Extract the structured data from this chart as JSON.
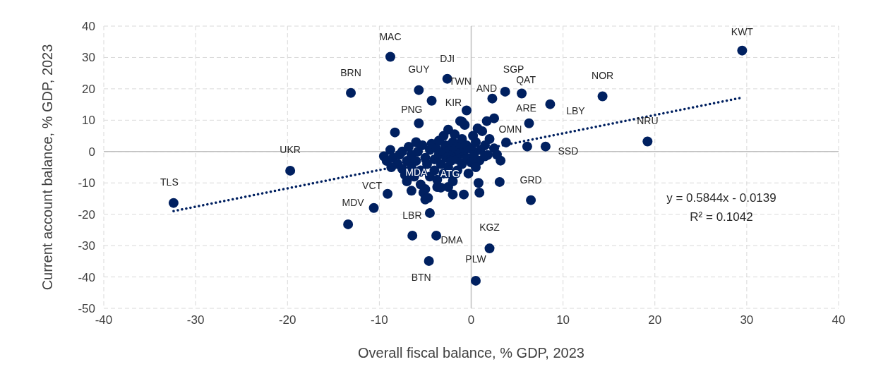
{
  "chart_data": {
    "type": "scatter",
    "xlabel": "Overall fiscal balance, % GDP, 2023",
    "ylabel": "Current account balance, % GDP, 2023",
    "xlim": [
      -40,
      40
    ],
    "xticks": [
      -40,
      -30,
      -20,
      -10,
      0,
      10,
      20,
      30,
      40
    ],
    "ylim": [
      -50,
      40
    ],
    "yticks": [
      -50,
      -40,
      -30,
      -20,
      -10,
      0,
      10,
      20,
      30,
      40
    ],
    "grid": true,
    "marker": "circle",
    "series": [
      {
        "color": "#002060",
        "x": [
          29.5,
          -8.8,
          -2.6,
          -13.1,
          -5.7,
          -0.5,
          -4.3,
          3.7,
          5.5,
          2.3,
          14.3,
          8.6,
          6.3,
          -5.7,
          3.8,
          19.2,
          8.1,
          6.1,
          -19.7,
          -32.4,
          -9.1,
          -13.4,
          -10.6,
          -2.3,
          6.5,
          -4.5,
          -3.8,
          -6.4,
          2.0,
          -4.6,
          0.5,
          -8.3,
          2.5,
          1.7,
          0.7,
          -1.2,
          3.2,
          3.1,
          0.9,
          1.8,
          -5.2,
          -5.0,
          -2.0,
          -0.8,
          0.9,
          -3.7,
          -2.5,
          -9.5,
          -9.2,
          -8.8,
          -8.5,
          -8.0,
          -7.8,
          -7.5,
          -7.2,
          -7.0,
          -7.0,
          -6.8,
          -6.5,
          -6.5,
          -6.2,
          -6.0,
          -6.0,
          -5.8,
          -5.5,
          -5.5,
          -5.3,
          -5.0,
          -5.0,
          -4.8,
          -4.5,
          -4.5,
          -4.3,
          -4.0,
          -4.0,
          -3.8,
          -3.7,
          -3.5,
          -3.5,
          -3.3,
          -3.0,
          -3.0,
          -3.0,
          -2.8,
          -2.7,
          -2.5,
          -2.5,
          -2.3,
          -2.2,
          -2.0,
          -2.0,
          -2.0,
          -1.8,
          -1.7,
          -1.5,
          -1.5,
          -1.3,
          -1.2,
          -1.0,
          -1.0,
          -0.8,
          -0.7,
          -0.5,
          -0.5,
          -0.3,
          0.0,
          0.0,
          0.2,
          0.3,
          0.5,
          0.5,
          0.8,
          1.0,
          1.2,
          1.5,
          1.5,
          2.0,
          2.5,
          2.8,
          -1.0,
          -7.5,
          -8.7,
          -6.5,
          -4.7,
          -3.3
        ],
        "values": [
          32.2,
          30.2,
          23.2,
          18.7,
          19.6,
          13.1,
          16.2,
          19.1,
          18.5,
          16.9,
          17.6,
          15.1,
          9.0,
          9.0,
          2.9,
          3.2,
          1.6,
          1.6,
          -6.1,
          -16.4,
          -13.5,
          -23.2,
          -18.0,
          -7.0,
          -15.5,
          -19.6,
          -26.8,
          -26.8,
          -30.9,
          -34.9,
          -41.2,
          6.1,
          10.6,
          9.7,
          7.4,
          9.7,
          -2.9,
          -9.7,
          -2.9,
          -1.1,
          -13.1,
          -15.3,
          -13.7,
          -13.7,
          -13.1,
          -11.3,
          -11.3,
          -1.5,
          -3.0,
          0.5,
          -2.0,
          -4.0,
          -1.0,
          0.0,
          -7.5,
          -9.5,
          -3.0,
          1.5,
          -5.0,
          -1.0,
          -8.0,
          3.0,
          -3.0,
          0.0,
          -6.0,
          -10.5,
          2.0,
          -2.0,
          -12.0,
          -4.0,
          0.5,
          -8.0,
          2.5,
          -2.5,
          -6.0,
          1.0,
          -9.0,
          3.5,
          -1.0,
          -4.0,
          0.0,
          5.0,
          -7.0,
          2.0,
          -2.0,
          -5.0,
          7.0,
          0.5,
          -3.0,
          3.0,
          -1.0,
          -9.5,
          5.5,
          1.0,
          -2.5,
          -6.0,
          2.5,
          -0.5,
          4.0,
          -4.0,
          0.0,
          8.5,
          -2.0,
          2.0,
          -7.0,
          1.0,
          -3.5,
          5.0,
          -1.0,
          3.0,
          -5.0,
          -10.0,
          0.5,
          6.5,
          2.0,
          -1.5,
          4.0,
          1.0,
          -1.0,
          9.5,
          -5.5,
          -5.0,
          -12.5,
          -14.8,
          -11.5
        ]
      },
      {
        "type": "line",
        "color": "#002060",
        "line_style": "dotted",
        "marker": "none",
        "x": [
          -32.4,
          29.5
        ],
        "values": [
          -19.0,
          17.2
        ]
      }
    ],
    "annotations": [
      {
        "text": "KWT",
        "x": 29.5,
        "y": 32.2
      },
      {
        "text": "MAC",
        "x": -8.8,
        "y": 30.2
      },
      {
        "text": "DJI",
        "x": -2.6,
        "y": 23.2
      },
      {
        "text": "BRN",
        "x": -13.1,
        "y": 18.7
      },
      {
        "text": "GUY",
        "x": -5.7,
        "y": 19.6
      },
      {
        "text": "TWN",
        "x": -0.5,
        "y": 13.1
      },
      {
        "text": "KIR",
        "x": -4.3,
        "y": 16.2
      },
      {
        "text": "SGP",
        "x": 3.7,
        "y": 19.1
      },
      {
        "text": "QAT",
        "x": 5.5,
        "y": 18.5
      },
      {
        "text": "AND",
        "x": 2.3,
        "y": 16.9
      },
      {
        "text": "NOR",
        "x": 14.3,
        "y": 17.6
      },
      {
        "text": "LBY",
        "x": 8.6,
        "y": 15.1
      },
      {
        "text": "ARE",
        "x": 6.3,
        "y": 9.0
      },
      {
        "text": "PNG",
        "x": -5.7,
        "y": 9.0
      },
      {
        "text": "OMN",
        "x": 3.8,
        "y": 2.9
      },
      {
        "text": "NRU",
        "x": 19.2,
        "y": 3.2
      },
      {
        "text": "SSD",
        "x": 8.1,
        "y": 1.6
      },
      {
        "text": "UKR",
        "x": -19.7,
        "y": -6.1
      },
      {
        "text": "TLS",
        "x": -32.4,
        "y": -16.4
      },
      {
        "text": "VCT",
        "x": -9.1,
        "y": -13.5
      },
      {
        "text": "MDV",
        "x": -13.4,
        "y": -23.2
      },
      {
        "text": "MDA",
        "x": -6.2,
        "y": -8.0
      },
      {
        "text": "ATG",
        "x": -2.3,
        "y": -7.0
      },
      {
        "text": "GRD",
        "x": 6.5,
        "y": -15.5
      },
      {
        "text": "LBR",
        "x": -4.5,
        "y": -19.6
      },
      {
        "text": "DMA",
        "x": -3.8,
        "y": -26.8
      },
      {
        "text": "KGZ",
        "x": 2.0,
        "y": -30.9
      },
      {
        "text": "BTN",
        "x": -4.6,
        "y": -34.9
      },
      {
        "text": "PLW",
        "x": 0.5,
        "y": -41.2
      },
      "y = 0.5844x - 0.0139",
      "R² = 0.1042"
    ]
  }
}
